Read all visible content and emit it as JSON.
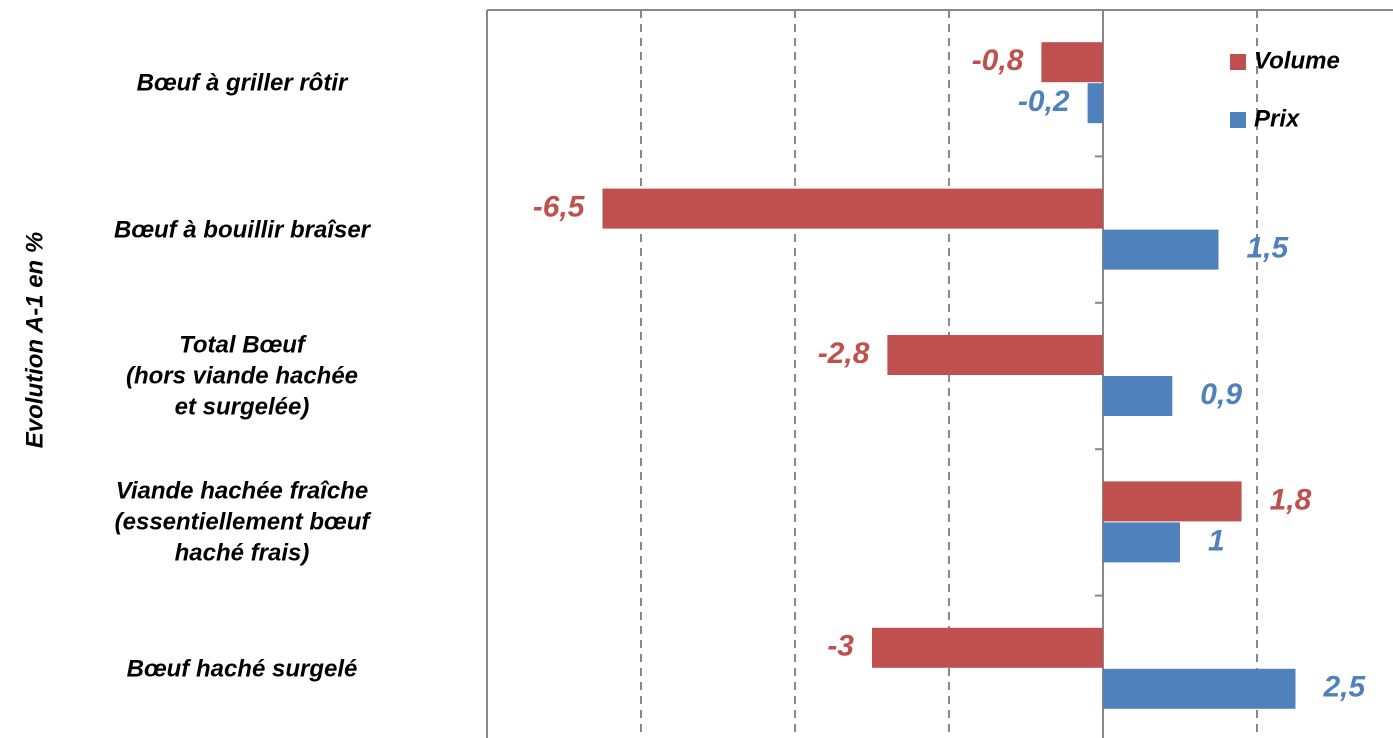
{
  "chart_data": {
    "type": "barh",
    "y_label": "Evolution A-1 en %",
    "categories": [
      "Bœuf à griller rôtir",
      "Bœuf à bouillir braîser",
      "Total Bœuf\n(hors viande hachée\net surgelée)",
      "Viande hachée fraîche\n(essentiellement bœuf\nhaché frais)",
      "Bœuf haché surgelé"
    ],
    "series": [
      {
        "name": "Volume",
        "color": "#c0504d",
        "values": [
          -0.8,
          -6.5,
          -2.8,
          1.8,
          -3
        ],
        "value_labels": [
          "-0,8",
          "-6,5",
          "-2,8",
          "1,8",
          "-3"
        ]
      },
      {
        "name": "Prix",
        "color": "#4f81bd",
        "values": [
          -0.2,
          1.5,
          0.9,
          1,
          2.5
        ],
        "value_labels": [
          "-0,2",
          "1,5",
          "0,9",
          "1",
          "2,5"
        ]
      }
    ],
    "xlim": [
      -8,
      4
    ],
    "xticks": [
      -8,
      -6,
      -4,
      -2,
      0,
      2,
      4
    ],
    "grid": true,
    "legend": "top-right"
  }
}
